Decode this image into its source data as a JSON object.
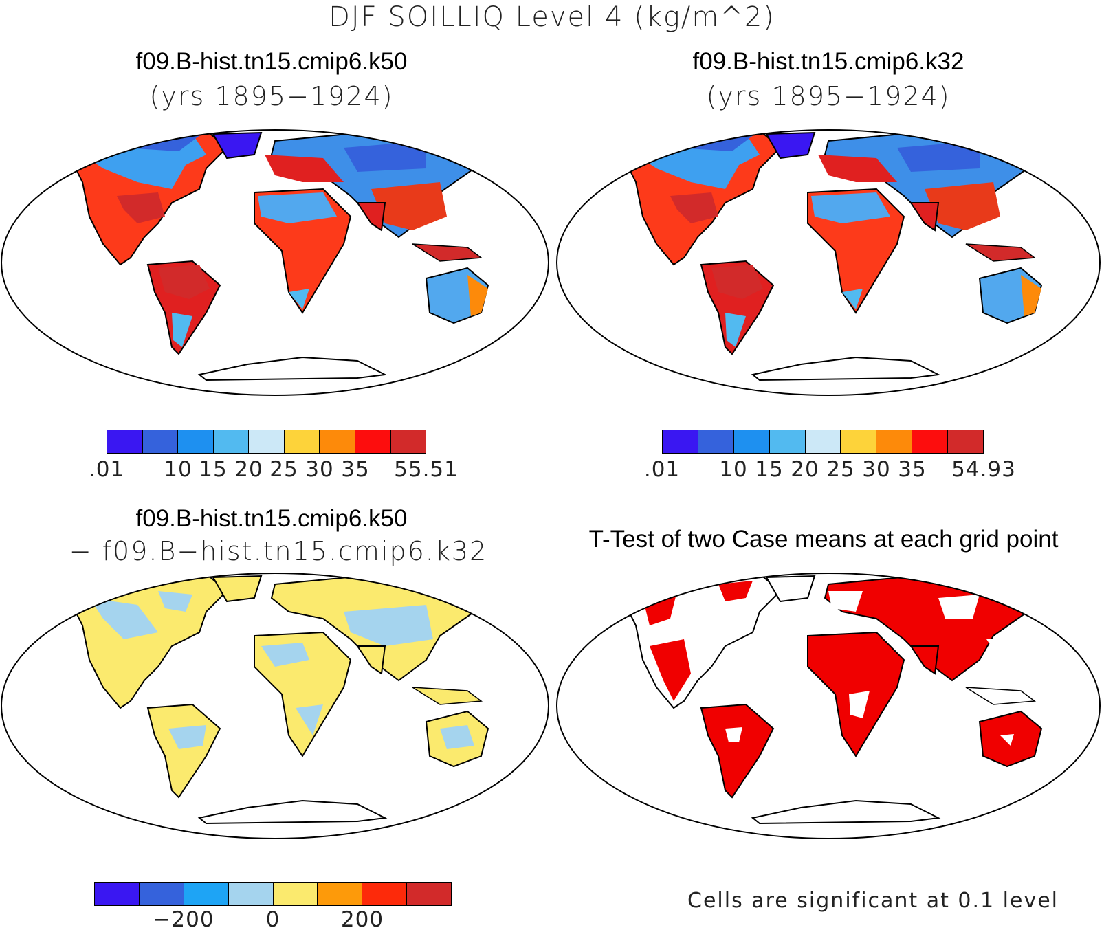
{
  "figure_title": "DJF SOILLIQ Level 4 (kg/m^2)",
  "panels": [
    {
      "title": "f09.B-hist.tn15.cmip6.k50",
      "subtitle": "(yrs 1895−1924)",
      "colorbar": {
        "colors": [
          "#3a17f2",
          "#3562dc",
          "#1e90f0",
          "#52baf0",
          "#cce8f7",
          "#fdd33a",
          "#fd8a0a",
          "#fd0d0d",
          "#d22a2a"
        ],
        "tick_labels": [
          ".01",
          "10",
          "15",
          "20",
          "25",
          "30",
          "35",
          "55.51"
        ]
      }
    },
    {
      "title": "f09.B-hist.tn15.cmip6.k32",
      "subtitle": "(yrs 1895−1924)",
      "colorbar": {
        "colors": [
          "#3a17f2",
          "#3562dc",
          "#1e90f0",
          "#52baf0",
          "#cce8f7",
          "#fdd33a",
          "#fd8a0a",
          "#fd0d0d",
          "#d22a2a"
        ],
        "tick_labels": [
          ".01",
          "10",
          "15",
          "20",
          "25",
          "30",
          "35",
          "54.93"
        ]
      }
    },
    {
      "title": "f09.B-hist.tn15.cmip6.k50",
      "subtitle": "− f09.B−hist.tn15.cmip6.k32",
      "colorbar": {
        "colors": [
          "#3a17f2",
          "#3562dc",
          "#1ea4f5",
          "#a5d4ee",
          "#fbea6e",
          "#fd9a0a",
          "#fd2a0a",
          "#d22a2a"
        ],
        "tick_labels": [
          "−200",
          "0",
          "200"
        ]
      }
    },
    {
      "title": "T-Test of two Case means at each grid point",
      "note": "Cells are significant at 0.1 level",
      "color": "#f00000"
    }
  ]
}
